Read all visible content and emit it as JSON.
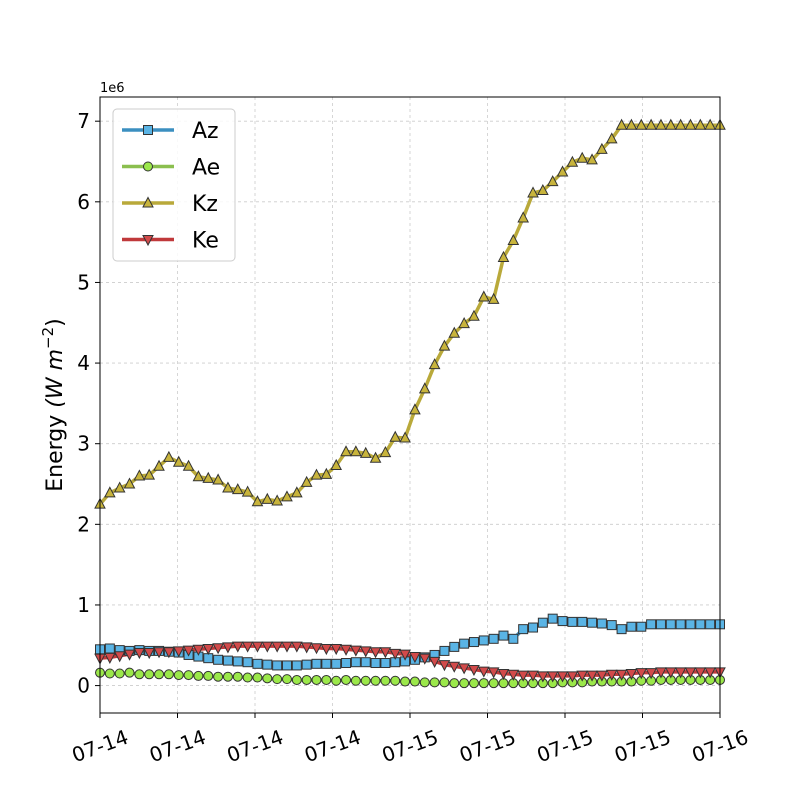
{
  "chart_data": {
    "type": "line",
    "ylabel": "Energy",
    "ylabel_unit": "(W m",
    "ylabel_exp": "−2",
    "ylabel_close": ")",
    "scale_text": "1e6",
    "ylim": [
      -340000,
      7300000
    ],
    "y_ticks": [
      0,
      1000000,
      2000000,
      3000000,
      4000000,
      5000000,
      6000000,
      7000000
    ],
    "y_tick_labels": [
      "0",
      "1",
      "2",
      "3",
      "4",
      "5",
      "6",
      "7"
    ],
    "x_tick_labels": [
      "07-14",
      "07-14",
      "07-14",
      "07-14",
      "07-15",
      "07-15",
      "07-15",
      "07-15",
      "07-16"
    ],
    "x_count": 64,
    "grid": true,
    "legend_position": "top-left",
    "series": [
      {
        "name": "Az",
        "color": "#3b8fc0",
        "fill": "#5ab4e5",
        "marker": "square",
        "values": [
          450000,
          460000,
          440000,
          430000,
          440000,
          430000,
          430000,
          420000,
          410000,
          380000,
          360000,
          340000,
          320000,
          310000,
          300000,
          290000,
          270000,
          260000,
          250000,
          250000,
          250000,
          260000,
          270000,
          270000,
          270000,
          280000,
          290000,
          290000,
          280000,
          280000,
          290000,
          300000,
          320000,
          350000,
          380000,
          430000,
          480000,
          520000,
          540000,
          560000,
          580000,
          620000,
          580000,
          700000,
          720000,
          780000,
          830000,
          800000,
          790000,
          790000,
          780000,
          770000,
          750000,
          700000,
          730000,
          730000,
          760000,
          760000,
          760000,
          760000,
          760000,
          760000,
          760000,
          760000
        ]
      },
      {
        "name": "Ae",
        "color": "#8bbf4f",
        "fill": "#9be84a",
        "marker": "circle",
        "values": [
          160000,
          150000,
          150000,
          160000,
          140000,
          140000,
          140000,
          140000,
          130000,
          130000,
          120000,
          120000,
          110000,
          110000,
          110000,
          100000,
          100000,
          90000,
          80000,
          80000,
          70000,
          70000,
          70000,
          70000,
          60000,
          70000,
          60000,
          60000,
          60000,
          60000,
          60000,
          50000,
          50000,
          40000,
          40000,
          40000,
          30000,
          30000,
          30000,
          30000,
          30000,
          30000,
          30000,
          30000,
          30000,
          30000,
          30000,
          40000,
          40000,
          40000,
          50000,
          50000,
          50000,
          50000,
          50000,
          60000,
          60000,
          70000,
          70000,
          70000,
          70000,
          70000,
          70000,
          70000
        ]
      },
      {
        "name": "Kz",
        "color": "#b9a93a",
        "fill": "#c8b43c",
        "marker": "triangle-up",
        "values": [
          2250000,
          2390000,
          2450000,
          2500000,
          2600000,
          2610000,
          2720000,
          2830000,
          2770000,
          2720000,
          2590000,
          2570000,
          2550000,
          2450000,
          2430000,
          2400000,
          2280000,
          2310000,
          2290000,
          2340000,
          2390000,
          2520000,
          2610000,
          2620000,
          2730000,
          2900000,
          2900000,
          2880000,
          2820000,
          2890000,
          3080000,
          3070000,
          3420000,
          3680000,
          3980000,
          4210000,
          4370000,
          4490000,
          4580000,
          4820000,
          4790000,
          5310000,
          5520000,
          5800000,
          6110000,
          6140000,
          6250000,
          6370000,
          6490000,
          6540000,
          6520000,
          6650000,
          6780000,
          6950000,
          6950000,
          6950000,
          6950000,
          6950000,
          6950000,
          6950000,
          6950000,
          6950000,
          6950000,
          6950000
        ]
      },
      {
        "name": "Ke",
        "color": "#c0393b",
        "fill": "#d24a4a",
        "marker": "triangle-down",
        "values": [
          340000,
          350000,
          370000,
          390000,
          410000,
          410000,
          420000,
          420000,
          430000,
          440000,
          450000,
          460000,
          470000,
          480000,
          490000,
          490000,
          490000,
          490000,
          490000,
          490000,
          490000,
          480000,
          470000,
          460000,
          460000,
          450000,
          440000,
          430000,
          420000,
          420000,
          400000,
          390000,
          360000,
          340000,
          300000,
          260000,
          240000,
          220000,
          200000,
          180000,
          170000,
          150000,
          140000,
          130000,
          130000,
          120000,
          120000,
          120000,
          120000,
          130000,
          130000,
          130000,
          140000,
          140000,
          150000,
          160000,
          160000,
          170000,
          170000,
          170000,
          170000,
          170000,
          170000,
          170000
        ]
      }
    ]
  }
}
